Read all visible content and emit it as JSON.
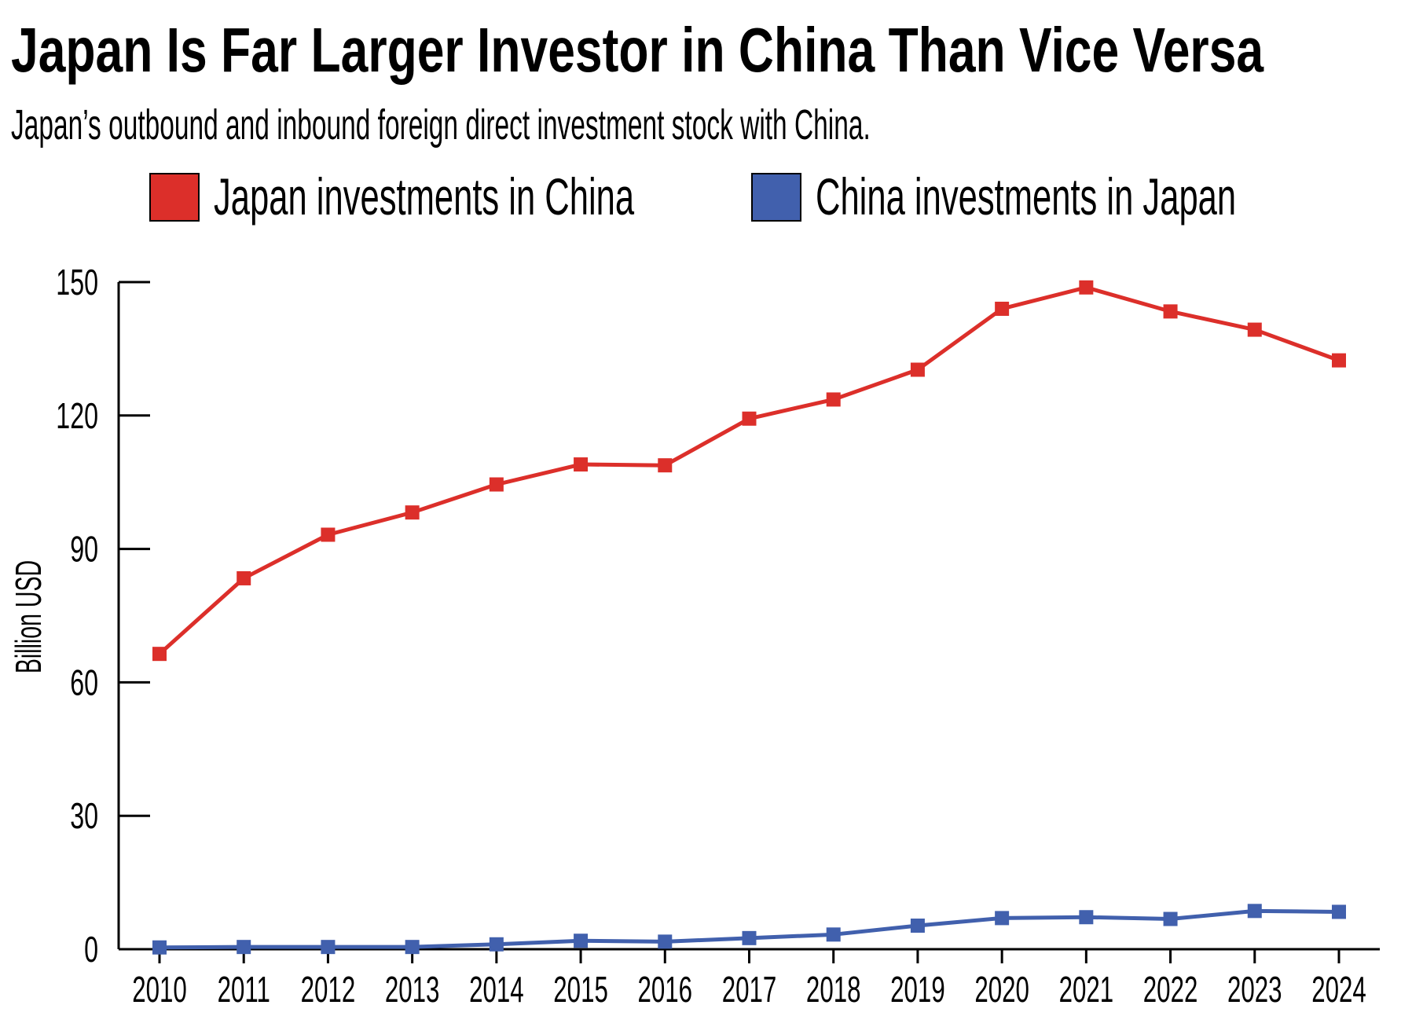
{
  "title": "Japan Is Far Larger Investor in China Than Vice Versa",
  "subtitle": "Japan’s outbound and inbound foreign direct investment stock with China.",
  "chart_data": {
    "type": "line",
    "title": "Japan Is Far Larger Investor in China Than Vice Versa",
    "subtitle": "Japan’s outbound and inbound foreign direct investment stock with China.",
    "xlabel": "",
    "ylabel": "Billion USD",
    "ylim": [
      0,
      150
    ],
    "yticks": [
      0,
      30,
      60,
      90,
      120,
      150
    ],
    "grid": false,
    "legend_position": "top",
    "x": [
      "2010",
      "2011",
      "2012",
      "2013",
      "2014",
      "2015",
      "2016",
      "2017",
      "2018",
      "2019",
      "2020",
      "2021",
      "2022",
      "2023",
      "2024"
    ],
    "series": [
      {
        "name": "Japan investments in China",
        "color": "#dc2f2a",
        "marker": "square",
        "values": [
          66.4,
          83.4,
          93.2,
          98.2,
          104.5,
          109.0,
          108.8,
          119.3,
          123.6,
          130.3,
          144.0,
          148.8,
          143.4,
          139.3,
          132.4
        ]
      },
      {
        "name": "China investments in Japan",
        "color": "#4160ad",
        "marker": "square",
        "values": [
          0.4,
          0.5,
          0.5,
          0.5,
          1.1,
          1.9,
          1.7,
          2.5,
          3.3,
          5.3,
          7.0,
          7.2,
          6.8,
          8.6,
          8.4
        ]
      }
    ]
  }
}
